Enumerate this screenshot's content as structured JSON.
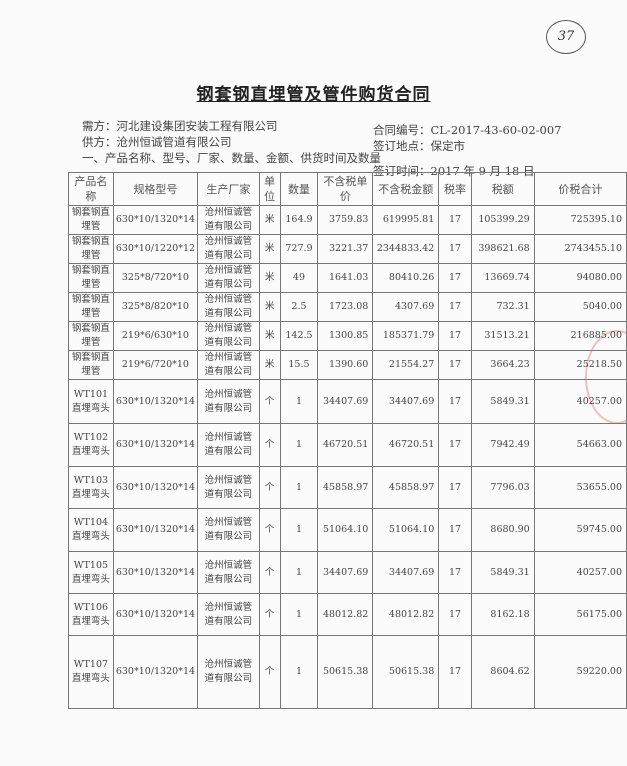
{
  "page_number": "37",
  "title": "钢套钢直埋管及管件购货合同",
  "buyer": "需方：河北建设集团安装工程有限公司",
  "supplier": "供方：沧州恒诚管道有限公司",
  "section": "一、产品名称、型号、厂家、数量、金额、供货时间及数量",
  "contract_no": "合同编号：CL-2017-43-60-02-007",
  "sign_place": "签订地点：保定市",
  "sign_date": "签订时间：2017 年 9 月 18 日",
  "headers": [
    "产品名称",
    "规格型号",
    "生产厂家",
    "单位",
    "数量",
    "不含税单价",
    "不含税金额",
    "税率",
    "税额",
    "价税合计"
  ],
  "rows": [
    [
      "钢套钢直埋管",
      "630*10/1320*14",
      "沧州恒诚管道有限公司",
      "米",
      "164.9",
      "3759.83",
      "619995.81",
      "17",
      "105399.29",
      "725395.10"
    ],
    [
      "钢套钢直埋管",
      "630*10/1220*12",
      "沧州恒诚管道有限公司",
      "米",
      "727.9",
      "3221.37",
      "2344833.42",
      "17",
      "398621.68",
      "2743455.10"
    ],
    [
      "钢套钢直埋管",
      "325*8/720*10",
      "沧州恒诚管道有限公司",
      "米",
      "49",
      "1641.03",
      "80410.26",
      "17",
      "13669.74",
      "94080.00"
    ],
    [
      "钢套钢直埋管",
      "325*8/820*10",
      "沧州恒诚管道有限公司",
      "米",
      "2.5",
      "1723.08",
      "4307.69",
      "17",
      "732.31",
      "5040.00"
    ],
    [
      "钢套钢直埋管",
      "219*6/630*10",
      "沧州恒诚管道有限公司",
      "米",
      "142.5",
      "1300.85",
      "185371.79",
      "17",
      "31513.21",
      "216885.00"
    ],
    [
      "钢套钢直埋管",
      "219*6/720*10",
      "沧州恒诚管道有限公司",
      "米",
      "15.5",
      "1390.60",
      "21554.27",
      "17",
      "3664.23",
      "25218.50"
    ],
    [
      "WT101直埋弯头",
      "630*10/1320*14",
      "沧州恒诚管道有限公司",
      "个",
      "1",
      "34407.69",
      "34407.69",
      "17",
      "5849.31",
      "40257.00"
    ],
    [
      "WT102直埋弯头",
      "630*10/1320*14",
      "沧州恒诚管道有限公司",
      "个",
      "1",
      "46720.51",
      "46720.51",
      "17",
      "7942.49",
      "54663.00"
    ],
    [
      "WT103直埋弯头",
      "630*10/1320*14",
      "沧州恒诚管道有限公司",
      "个",
      "1",
      "45858.97",
      "45858.97",
      "17",
      "7796.03",
      "53655.00"
    ],
    [
      "WT104直埋弯头",
      "630*10/1320*14",
      "沧州恒诚管道有限公司",
      "个",
      "1",
      "51064.10",
      "51064.10",
      "17",
      "8680.90",
      "59745.00"
    ],
    [
      "WT105直埋弯头",
      "630*10/1320*14",
      "沧州恒诚管道有限公司",
      "个",
      "1",
      "34407.69",
      "34407.69",
      "17",
      "5849.31",
      "40257.00"
    ],
    [
      "WT106直埋弯头",
      "630*10/1320*14",
      "沧州恒诚管道有限公司",
      "个",
      "1",
      "48012.82",
      "48012.82",
      "17",
      "8162.18",
      "56175.00"
    ],
    [
      "WT107直埋弯头",
      "630*10/1320*14",
      "沧州恒诚管道有限公司",
      "个",
      "1",
      "50615.38",
      "50615.38",
      "17",
      "8604.62",
      "59220.00"
    ]
  ]
}
